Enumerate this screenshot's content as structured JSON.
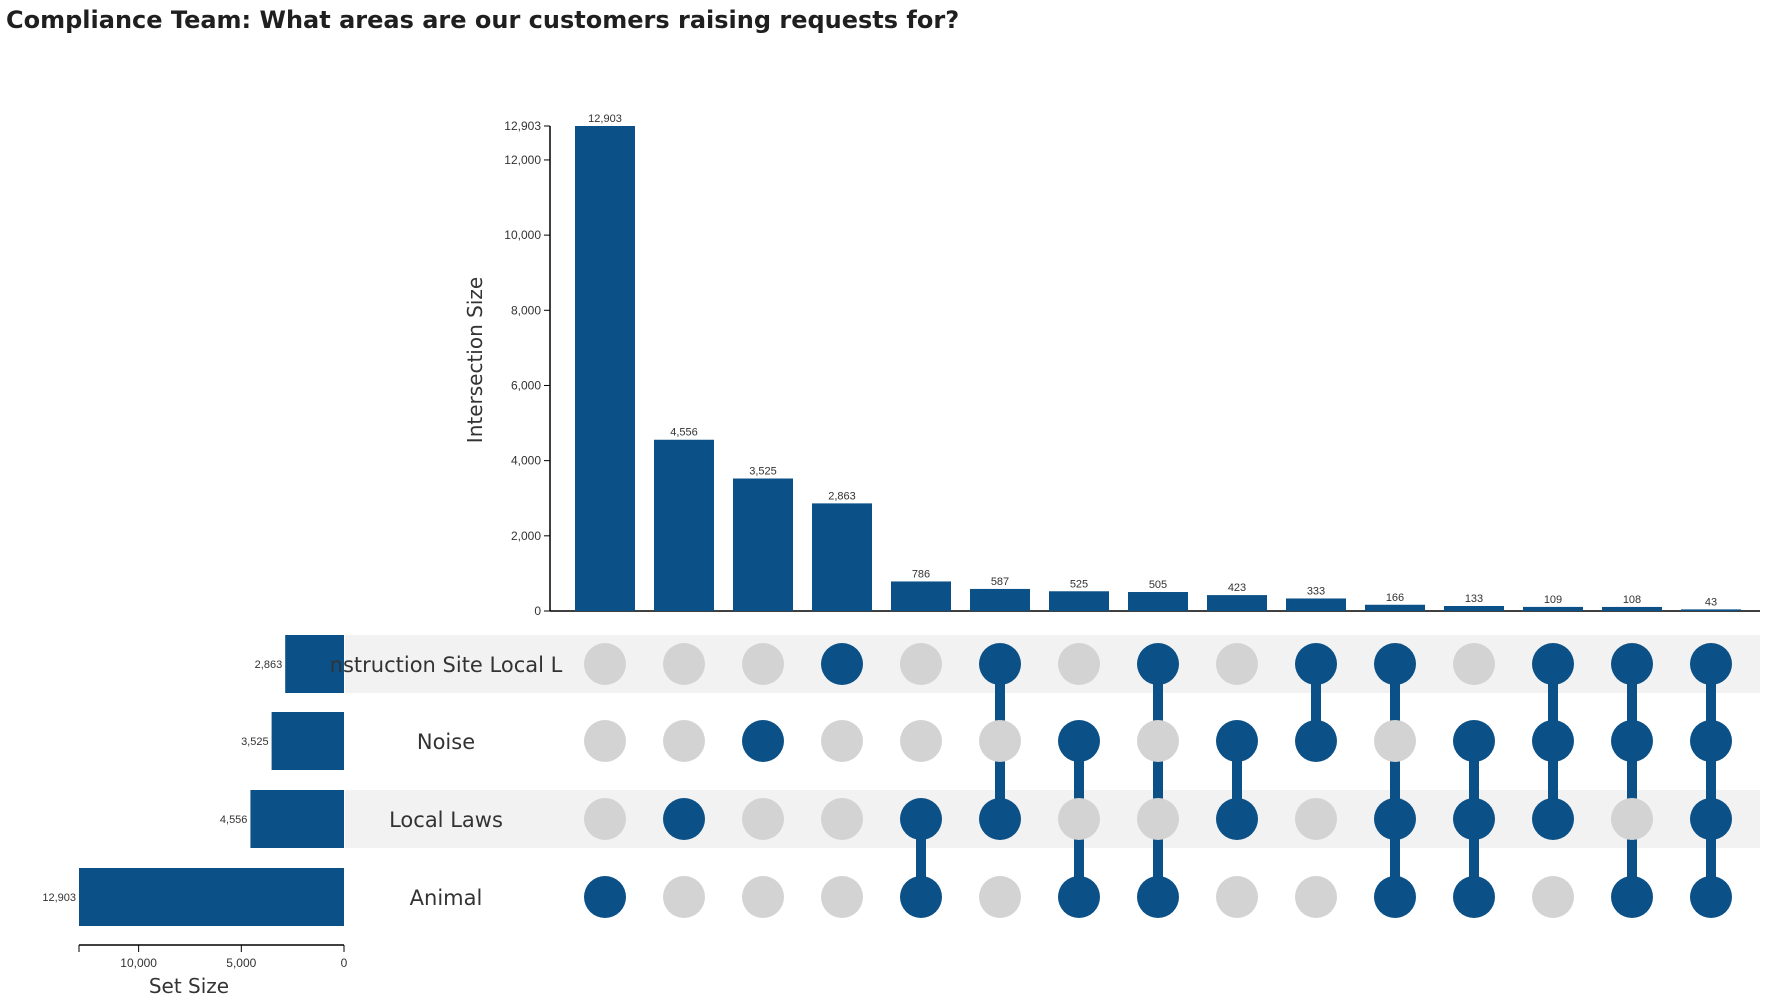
{
  "title": "Compliance Team: What areas are our customers raising requests for?",
  "colors": {
    "primary": "#0b5086",
    "inactive": "#d3d3d3",
    "stripe": "#f2f2f2",
    "axis": "#000000"
  },
  "chart_data": {
    "type": "upset",
    "title": "Compliance Team: What areas are our customers raising requests for?",
    "ylabel": "Intersection Size",
    "setsize_label": "Set Size",
    "ylim": [
      0,
      12903
    ],
    "y_ticks": [
      0,
      2000,
      4000,
      6000,
      8000,
      10000,
      12000,
      12903
    ],
    "y_tick_labels": [
      "0",
      "2,000",
      "4,000",
      "6,000",
      "8,000",
      "10,000",
      "12,000",
      "12,903"
    ],
    "setsize_ticks": [
      10000,
      5000,
      0
    ],
    "setsize_tick_labels": [
      "10,000",
      "5,000",
      "0"
    ],
    "sets": [
      {
        "name": "Construction Site Local Laws",
        "display": "nstruction Site Local L",
        "size": 2863,
        "size_label": "2,863"
      },
      {
        "name": "Noise",
        "display": "Noise",
        "size": 3525,
        "size_label": "3,525"
      },
      {
        "name": "Local Laws",
        "display": "Local Laws",
        "size": 4556,
        "size_label": "4,556"
      },
      {
        "name": "Animal",
        "display": "Animal",
        "size": 12903,
        "size_label": "12,903"
      }
    ],
    "intersections": [
      {
        "value": 12903,
        "label": "12,903",
        "sets": [
          3
        ]
      },
      {
        "value": 4556,
        "label": "4,556",
        "sets": [
          2
        ]
      },
      {
        "value": 3525,
        "label": "3,525",
        "sets": [
          1
        ]
      },
      {
        "value": 2863,
        "label": "2,863",
        "sets": [
          0
        ]
      },
      {
        "value": 786,
        "label": "786",
        "sets": [
          2,
          3
        ]
      },
      {
        "value": 587,
        "label": "587",
        "sets": [
          0,
          2
        ]
      },
      {
        "value": 525,
        "label": "525",
        "sets": [
          1,
          3
        ]
      },
      {
        "value": 505,
        "label": "505",
        "sets": [
          0,
          3
        ]
      },
      {
        "value": 423,
        "label": "423",
        "sets": [
          1,
          2
        ]
      },
      {
        "value": 333,
        "label": "333",
        "sets": [
          0,
          1
        ]
      },
      {
        "value": 166,
        "label": "166",
        "sets": [
          0,
          2,
          3
        ]
      },
      {
        "value": 133,
        "label": "133",
        "sets": [
          1,
          2,
          3
        ]
      },
      {
        "value": 109,
        "label": "109",
        "sets": [
          0,
          1,
          2
        ]
      },
      {
        "value": 108,
        "label": "108",
        "sets": [
          0,
          1,
          3
        ]
      },
      {
        "value": 43,
        "label": "43",
        "sets": [
          0,
          1,
          2,
          3
        ]
      }
    ]
  }
}
